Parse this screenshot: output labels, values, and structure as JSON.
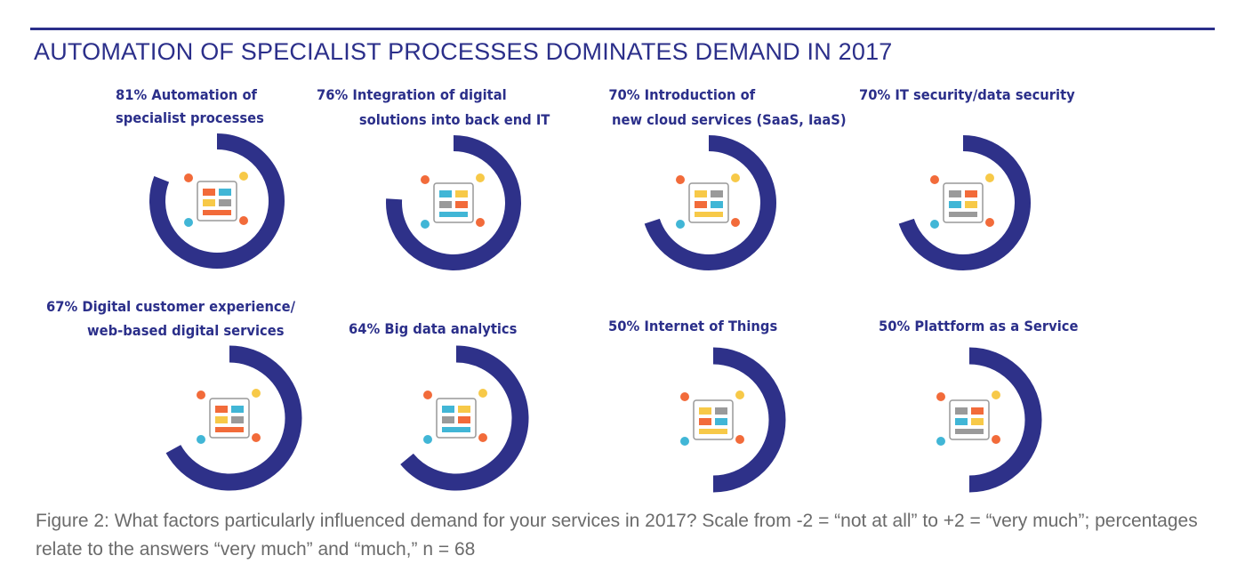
{
  "title": "AUTOMATION OF SPECIALIST PROCESSES DOMINATES DEMAND IN 2017",
  "chart_data": {
    "type": "donut",
    "title": "AUTOMATION OF SPECIALIST PROCESSES DOMINATES DEMAND IN 2017",
    "unit": "%",
    "max": 100,
    "color": "#2e3189",
    "items": [
      {
        "value": 81,
        "line1": "81% Automation of",
        "line2": "specialist processes"
      },
      {
        "value": 76,
        "line1": "76% Integration of digital",
        "line2": "solutions into back end IT"
      },
      {
        "value": 70,
        "line1": "70% Introduction of",
        "line2": "new cloud services (SaaS, IaaS)"
      },
      {
        "value": 70,
        "line1": "70% IT security/data security",
        "line2": ""
      },
      {
        "value": 67,
        "line1": "67% Digital customer experience/",
        "line2": "web-based digital services"
      },
      {
        "value": 64,
        "line1": "64% Big data analytics",
        "line2": ""
      },
      {
        "value": 50,
        "line1": "50%  Internet of Things",
        "line2": ""
      },
      {
        "value": 50,
        "line1": "50%  Plattform as a Service",
        "line2": ""
      }
    ]
  },
  "caption": "Figure 2: What factors particularly influenced demand for your services in 2017? Scale from -2 = “not at all” to +2 = “very much”; percentages relate to the answers “very much” and “much,” n = 68"
}
